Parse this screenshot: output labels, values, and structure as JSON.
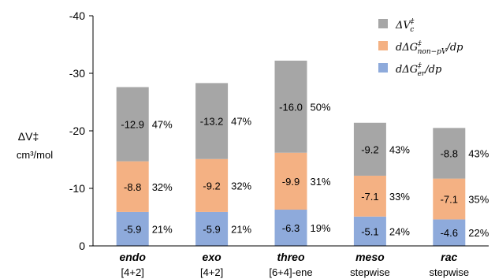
{
  "chart_data": {
    "type": "bar",
    "stacked": true,
    "categories": [
      "endo",
      "exo",
      "threo",
      "meso",
      "rac"
    ],
    "category_sublabels": [
      "[4+2]",
      "[4+2]",
      "[6+4]-ene",
      "stepwise",
      "stepwise"
    ],
    "ylabel": "ΔV‡",
    "ylabel_unit": "cm³/mol",
    "ylim": [
      0,
      -40
    ],
    "yticks": [
      0,
      -10,
      -20,
      -30,
      -40
    ],
    "y_inverted": true,
    "grid": false,
    "legend_position": "top-right",
    "series": [
      {
        "name": "dΔG‡er/dp",
        "color": "#8eaadb",
        "values": [
          -5.9,
          -5.9,
          -6.3,
          -5.1,
          -4.6
        ],
        "labels": [
          "-5.9",
          "-5.9",
          "-6.3",
          "-5.1",
          "-4.6"
        ],
        "percents": [
          "21%",
          "21%",
          "19%",
          "24%",
          "22%"
        ]
      },
      {
        "name": "dΔG‡non−pV/dp",
        "color": "#f4b183",
        "values": [
          -8.8,
          -9.2,
          -9.9,
          -7.1,
          -7.1
        ],
        "labels": [
          "-8.8",
          "-9.2",
          "-9.9",
          "-7.1",
          "-7.1"
        ],
        "percents": [
          "32%",
          "32%",
          "31%",
          "33%",
          "35%"
        ]
      },
      {
        "name": "ΔV‡c",
        "color": "#a6a6a6",
        "values": [
          -12.9,
          -13.2,
          -16.0,
          -9.2,
          -8.8
        ],
        "labels": [
          "-12.9",
          "-13.2",
          "-16.0",
          "-9.2",
          "-8.8"
        ],
        "percents": [
          "47%",
          "47%",
          "50%",
          "43%",
          "43%"
        ]
      }
    ],
    "legend": [
      {
        "series": 2,
        "text_main": "ΔV",
        "text_sup": "‡",
        "text_sub": "c"
      },
      {
        "series": 1,
        "text_main": "dΔG",
        "text_sup": "‡",
        "text_sub": "non−pV",
        "text_tail": "/dp"
      },
      {
        "series": 0,
        "text_main": "dΔG",
        "text_sup": "‡",
        "text_sub": "er",
        "text_tail": "/dp"
      }
    ]
  }
}
